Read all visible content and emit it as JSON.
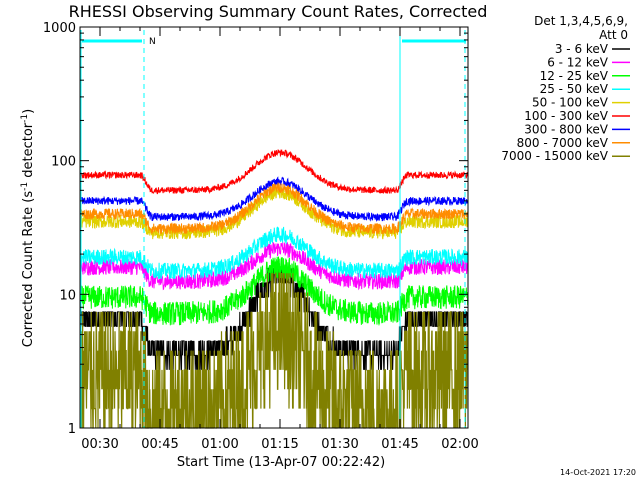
{
  "chart_data": {
    "type": "line",
    "title": "RHESSI Observing Summary Count Rates, Corrected",
    "xlabel": "Start Time (13-Apr-07 00:22:42)",
    "ylabel": "Corrected Count Rate (s",
    "ylabel_sup1": "-1",
    "ylabel_mid": " detector",
    "ylabel_sup2": "-1",
    "ylabel_end": ")",
    "yscale": "log",
    "ylim": [
      1,
      1000
    ],
    "xlim_minutes": [
      25,
      122
    ],
    "x_ticks": [
      {
        "label": "00:30",
        "min": 30
      },
      {
        "label": "00:45",
        "min": 45
      },
      {
        "label": "01:00",
        "min": 60
      },
      {
        "label": "01:15",
        "min": 75
      },
      {
        "label": "01:30",
        "min": 90
      },
      {
        "label": "01:45",
        "min": 105
      },
      {
        "label": "02:00",
        "min": 120
      }
    ],
    "y_ticks": [
      {
        "label": "1",
        "value": 1
      },
      {
        "label": "10",
        "value": 10
      },
      {
        "label": "100",
        "value": 100
      },
      {
        "label": "1000",
        "value": 1000
      }
    ],
    "legend_header": [
      "Det 1,3,4,5,6,9,",
      "Att 0"
    ],
    "night_intervals_minutes": [
      [
        25,
        41
      ],
      [
        105,
        122
      ]
    ],
    "night_flag": "N",
    "series": [
      {
        "name": "3 - 6 keV",
        "color": "#000000",
        "night": 6.5,
        "day_low": 3.6,
        "peak": 14,
        "noise": 0.1
      },
      {
        "name": "6 - 12 keV",
        "color": "#ff00ff",
        "night": 16,
        "day_low": 12.5,
        "peak": 22,
        "noise": 0.06
      },
      {
        "name": "12 - 25 keV",
        "color": "#00ff00",
        "night": 9.5,
        "day_low": 7.2,
        "peak": 16,
        "noise": 0.09
      },
      {
        "name": "25 - 50 keV",
        "color": "#00ffff",
        "night": 19,
        "day_low": 15,
        "peak": 28,
        "noise": 0.06
      },
      {
        "name": "50 - 100 keV",
        "color": "#e0d000",
        "night": 35,
        "day_low": 29,
        "peak": 58,
        "noise": 0.05
      },
      {
        "name": "100 - 300 keV",
        "color": "#ff0000",
        "night": 78,
        "day_low": 60,
        "peak": 115,
        "noise": 0.025
      },
      {
        "name": "300 - 800 keV",
        "color": "#0000ff",
        "night": 50,
        "day_low": 38,
        "peak": 70,
        "noise": 0.03
      },
      {
        "name": "800 - 7000 keV",
        "color": "#ff8c00",
        "night": 40,
        "day_low": 31,
        "peak": 63,
        "noise": 0.04
      },
      {
        "name": "7000 - 15000 keV",
        "color": "#808000",
        "night": 2.5,
        "day_low": 1.4,
        "peak": 5.0,
        "noise": 0.3
      }
    ]
  },
  "footer": {
    "timestamp": "14-Oct-2021 17:20"
  }
}
